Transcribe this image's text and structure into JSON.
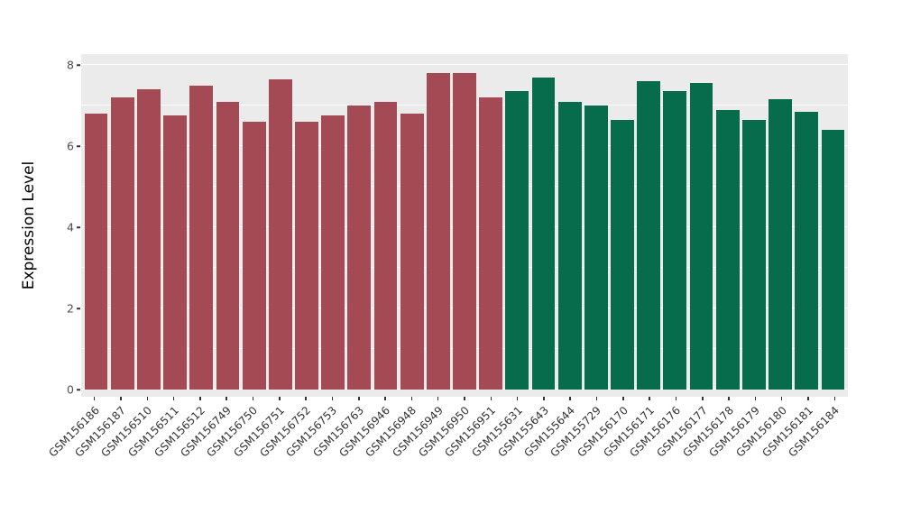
{
  "chart_data": {
    "type": "bar",
    "title": "",
    "xlabel": "",
    "ylabel": "Expression Level",
    "ylim": [
      0,
      8.2
    ],
    "yticks": [
      0,
      2,
      4,
      6,
      8
    ],
    "grid": "on",
    "legend": "none",
    "panel_background": "#EBEBEB",
    "gridline_color": "#FFFFFF",
    "categories": [
      "GSM156186",
      "GSM156187",
      "GSM156510",
      "GSM156511",
      "GSM156512",
      "GSM156749",
      "GSM156750",
      "GSM156751",
      "GSM156752",
      "GSM156753",
      "GSM156763",
      "GSM156946",
      "GSM156948",
      "GSM156949",
      "GSM156950",
      "GSM156951",
      "GSM155631",
      "GSM155643",
      "GSM155644",
      "GSM155729",
      "GSM156170",
      "GSM156171",
      "GSM156176",
      "GSM156177",
      "GSM156178",
      "GSM156179",
      "GSM156180",
      "GSM156181",
      "GSM156184"
    ],
    "values": [
      6.8,
      7.2,
      7.4,
      6.75,
      7.5,
      7.1,
      6.6,
      7.65,
      6.6,
      6.75,
      7.0,
      7.1,
      6.8,
      7.8,
      7.8,
      7.2,
      7.35,
      7.7,
      7.1,
      7.0,
      6.65,
      7.6,
      7.35,
      7.55,
      6.9,
      6.65,
      7.15,
      6.85,
      6.4
    ],
    "groups": [
      "A",
      "A",
      "A",
      "A",
      "A",
      "A",
      "A",
      "A",
      "A",
      "A",
      "A",
      "A",
      "A",
      "A",
      "A",
      "A",
      "B",
      "B",
      "B",
      "B",
      "B",
      "B",
      "B",
      "B",
      "B",
      "B",
      "B",
      "B",
      "B"
    ],
    "group_colors": {
      "A": "#A34A55",
      "B": "#066C4B"
    }
  }
}
